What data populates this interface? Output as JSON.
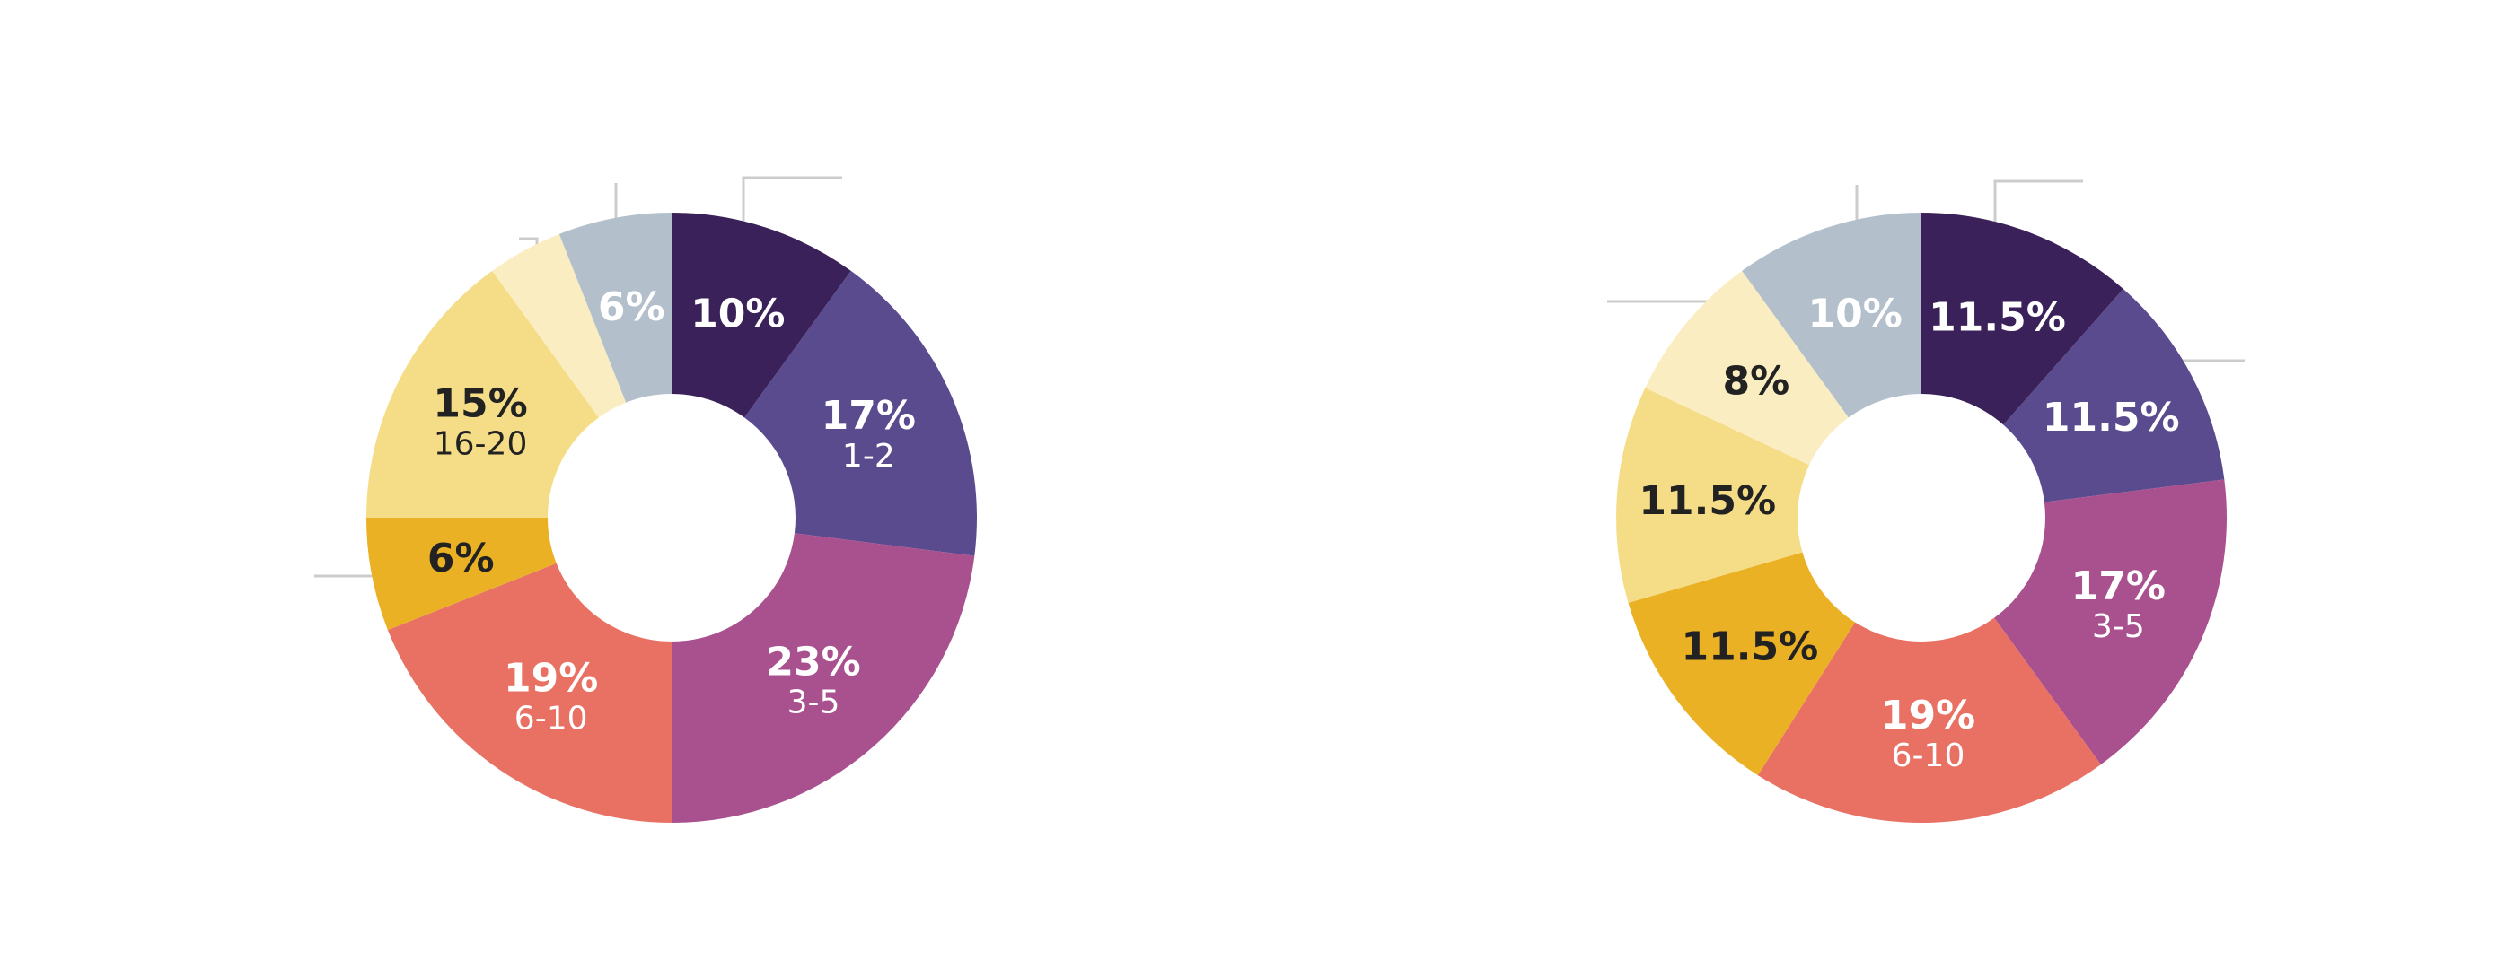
{
  "chart_data": [
    {
      "type": "donut",
      "title": "",
      "colors": {
        "leader_line": "#cccccc"
      },
      "slices": [
        {
          "value": 10,
          "pct_label": "10%",
          "sub_label": "",
          "color": "#3b2159",
          "text_color": "#ffffff"
        },
        {
          "value": 17,
          "pct_label": "17%",
          "sub_label": "1-2",
          "color": "#5a4a8e",
          "text_color": "#ffffff"
        },
        {
          "value": 23,
          "pct_label": "23%",
          "sub_label": "3-5",
          "color": "#a9518f",
          "text_color": "#ffffff"
        },
        {
          "value": 19,
          "pct_label": "19%",
          "sub_label": "6-10",
          "color": "#e87164",
          "text_color": "#ffffff"
        },
        {
          "value": 6,
          "pct_label": "6%",
          "sub_label": "",
          "color": "#ebb125",
          "text_color": "#222222"
        },
        {
          "value": 15,
          "pct_label": "15%",
          "sub_label": "16-20",
          "color": "#f5dd87",
          "text_color": "#222222"
        },
        {
          "value": 4,
          "pct_label": "",
          "sub_label": "",
          "color": "#faedc1",
          "text_color": "#222222"
        },
        {
          "value": 6,
          "pct_label": "6%",
          "sub_label": "",
          "color": "#b3c0cc",
          "text_color": "#ffffff"
        }
      ]
    },
    {
      "type": "donut",
      "title": "",
      "colors": {
        "leader_line": "#cccccc"
      },
      "slices": [
        {
          "value": 11.5,
          "pct_label": "11.5%",
          "sub_label": "",
          "color": "#3b2159",
          "text_color": "#ffffff"
        },
        {
          "value": 11.5,
          "pct_label": "11.5%",
          "sub_label": "",
          "color": "#5a4a8e",
          "text_color": "#ffffff"
        },
        {
          "value": 17,
          "pct_label": "17%",
          "sub_label": "3-5",
          "color": "#a9518f",
          "text_color": "#ffffff"
        },
        {
          "value": 19,
          "pct_label": "19%",
          "sub_label": "6-10",
          "color": "#e87164",
          "text_color": "#ffffff"
        },
        {
          "value": 11.5,
          "pct_label": "11.5%",
          "sub_label": "",
          "color": "#ebb125",
          "text_color": "#222222"
        },
        {
          "value": 11.5,
          "pct_label": "11.5%",
          "sub_label": "",
          "color": "#f5dd87",
          "text_color": "#222222"
        },
        {
          "value": 8,
          "pct_label": "8%",
          "sub_label": "",
          "color": "#faedc1",
          "text_color": "#222222"
        },
        {
          "value": 10,
          "pct_label": "10%",
          "sub_label": "",
          "color": "#b3c0cc",
          "text_color": "#ffffff"
        }
      ]
    }
  ]
}
